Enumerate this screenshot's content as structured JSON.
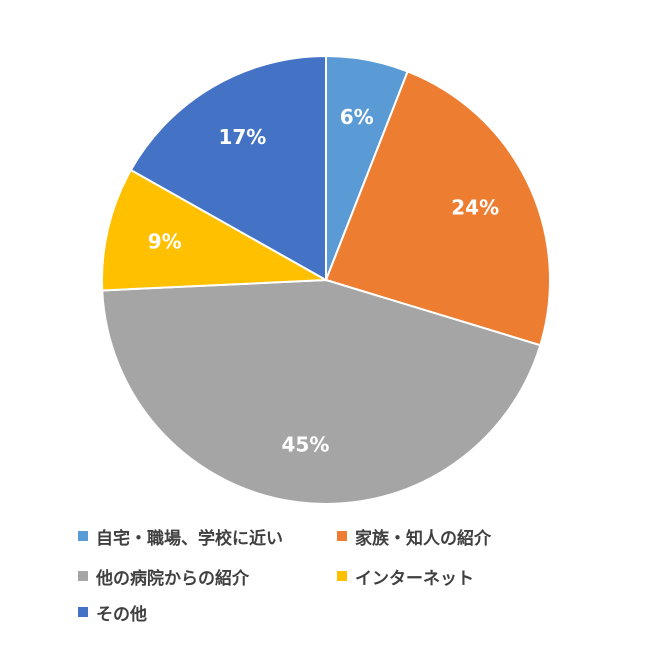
{
  "chart_data": {
    "type": "pie",
    "categories": [
      "自宅・職場、学校に近い",
      "家族・知人の紹介",
      "他の病院からの紹介",
      "インターネット",
      "その他"
    ],
    "values": [
      6,
      24,
      45,
      9,
      17
    ],
    "value_labels": [
      "6%",
      "24%",
      "45%",
      "9%",
      "17%"
    ],
    "colors": [
      "#5b9bd5",
      "#ed7d31",
      "#a5a5a5",
      "#ffc000",
      "#4472c4"
    ],
    "start_angle_deg": 0,
    "direction": "clockwise",
    "legend": "bottom"
  }
}
